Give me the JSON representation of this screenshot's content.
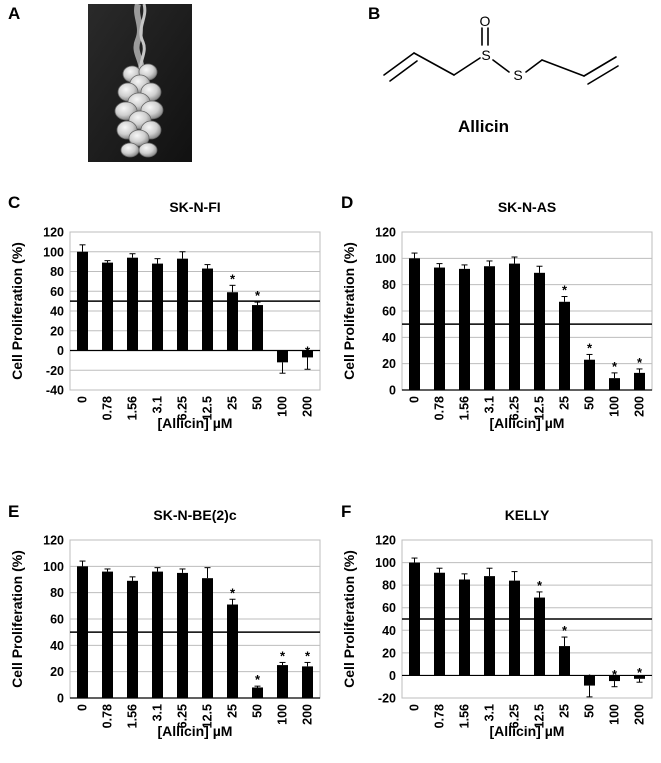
{
  "panels": {
    "A": "A",
    "B": "B",
    "C": "C",
    "D": "D",
    "E": "E",
    "F": "F"
  },
  "molecule": {
    "name": "Allicin",
    "atom_O": "O",
    "atom_S1": "S",
    "atom_S2": "S"
  },
  "chart_data": [
    {
      "type": "bar",
      "title": "SK-N-FI",
      "xlabel": "[Allicin] µM",
      "ylabel": "Cell Proliferation (%)",
      "categories": [
        "0",
        "0.78",
        "1.56",
        "3.1",
        "6.25",
        "12.5",
        "25",
        "50",
        "100",
        "200"
      ],
      "values": [
        100,
        89,
        94,
        88,
        93,
        83,
        59,
        46,
        -12,
        -7
      ],
      "errors": [
        7,
        2,
        4,
        5,
        7,
        4,
        7,
        3,
        11,
        12
      ],
      "significant": [
        false,
        false,
        false,
        false,
        false,
        false,
        true,
        true,
        true,
        true
      ],
      "ylim": [
        -40,
        120
      ],
      "yticks": [
        -40,
        -20,
        0,
        20,
        40,
        60,
        80,
        100,
        120
      ],
      "reference_line": 50,
      "grid": true
    },
    {
      "type": "bar",
      "title": "SK-N-AS",
      "xlabel": "[Allicin] µM",
      "ylabel": "Cell Proliferation (%)",
      "categories": [
        "0",
        "0.78",
        "1.56",
        "3.1",
        "6.25",
        "12.5",
        "25",
        "50",
        "100",
        "200"
      ],
      "values": [
        100,
        93,
        92,
        94,
        96,
        89,
        67,
        23,
        9,
        13
      ],
      "errors": [
        4,
        3,
        3,
        4,
        5,
        5,
        4,
        4,
        4,
        3
      ],
      "significant": [
        false,
        false,
        false,
        false,
        false,
        false,
        true,
        true,
        true,
        true
      ],
      "ylim": [
        0,
        120
      ],
      "yticks": [
        0,
        20,
        40,
        60,
        80,
        100,
        120
      ],
      "reference_line": 50,
      "grid": true
    },
    {
      "type": "bar",
      "title": "SK-N-BE(2)c",
      "xlabel": "[Allicin] µM",
      "ylabel": "Cell Proliferation (%)",
      "categories": [
        "0",
        "0.78",
        "1.56",
        "3.1",
        "6.25",
        "12.5",
        "25",
        "50",
        "100",
        "200"
      ],
      "values": [
        100,
        96,
        89,
        96,
        95,
        91,
        71,
        8,
        25,
        24
      ],
      "errors": [
        4,
        2,
        3,
        3,
        3,
        8,
        4,
        1,
        2,
        3
      ],
      "significant": [
        false,
        false,
        false,
        false,
        false,
        false,
        true,
        true,
        true,
        true
      ],
      "ylim": [
        0,
        120
      ],
      "yticks": [
        0,
        20,
        40,
        60,
        80,
        100,
        120
      ],
      "reference_line": 50,
      "grid": true
    },
    {
      "type": "bar",
      "title": "KELLY",
      "xlabel": "[Allicin] µM",
      "ylabel": "Cell Proliferation (%)",
      "categories": [
        "0",
        "0.78",
        "1.56",
        "3.1",
        "6.25",
        "12.5",
        "25",
        "50",
        "100",
        "200"
      ],
      "values": [
        100,
        91,
        85,
        88,
        84,
        69,
        26,
        -9,
        -5,
        -3
      ],
      "errors": [
        4,
        4,
        5,
        7,
        8,
        5,
        8,
        10,
        5,
        3
      ],
      "significant": [
        false,
        false,
        false,
        false,
        false,
        true,
        true,
        true,
        true,
        true
      ],
      "ylim": [
        -20,
        120
      ],
      "yticks": [
        -20,
        0,
        20,
        40,
        60,
        80,
        100,
        120
      ],
      "reference_line": 50,
      "grid": true
    }
  ]
}
